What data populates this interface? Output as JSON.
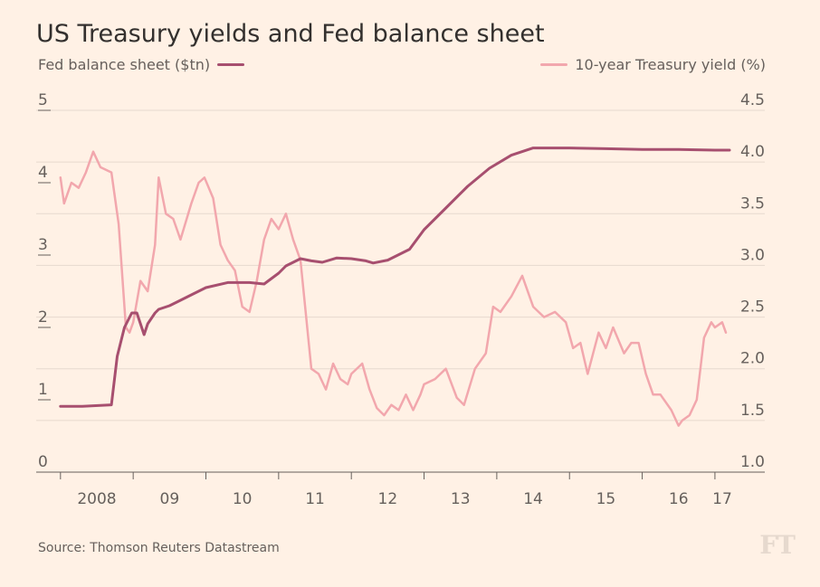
{
  "chart_data": {
    "type": "line",
    "title": "US Treasury yields and Fed balance sheet",
    "legend": {
      "left": "Fed balance sheet ($tn)",
      "right": "10-year Treasury yield (%)"
    },
    "source": "Source: Thomson Reuters Datastream",
    "logo": "FT",
    "colors": {
      "balance": "#a74f6f",
      "yield": "#f2a7ad",
      "grid": "#e6d9ce",
      "axis": "#66605c"
    },
    "x_range": [
      2007.94,
      2017.25
    ],
    "x_ticks": [
      {
        "label": "2008",
        "tick": 2008.0,
        "label_x": 2008.5
      },
      {
        "label": "09",
        "tick": 2009.0,
        "label_x": 2009.5
      },
      {
        "label": "10",
        "tick": 2010.0,
        "label_x": 2010.5
      },
      {
        "label": "11",
        "tick": 2011.0,
        "label_x": 2011.5
      },
      {
        "label": "12",
        "tick": 2012.0,
        "label_x": 2012.5
      },
      {
        "label": "13",
        "tick": 2013.0,
        "label_x": 2013.5
      },
      {
        "label": "14",
        "tick": 2014.0,
        "label_x": 2014.5
      },
      {
        "label": "15",
        "tick": 2015.0,
        "label_x": 2015.5
      },
      {
        "label": "16",
        "tick": 2016.0,
        "label_x": 2016.5
      },
      {
        "label": "17",
        "tick": 2017.0,
        "label_x": 2017.1
      }
    ],
    "left_axis": {
      "min": 0,
      "max": 5,
      "ticks": [
        "0",
        "1",
        "2",
        "3",
        "4",
        "5"
      ]
    },
    "right_axis": {
      "min": 1.0,
      "max": 4.5,
      "ticks": [
        "1.0",
        "1.5",
        "2.0",
        "2.5",
        "3.0",
        "3.5",
        "4.0",
        "4.5"
      ]
    },
    "series": [
      {
        "name": "Fed balance sheet ($tn)",
        "axis": "left",
        "x": [
          2008.0,
          2008.3,
          2008.7,
          2008.78,
          2008.88,
          2008.98,
          2009.05,
          2009.15,
          2009.2,
          2009.3,
          2009.35,
          2009.5,
          2009.6,
          2009.8,
          2010.0,
          2010.3,
          2010.6,
          2010.8,
          2011.0,
          2011.1,
          2011.3,
          2011.45,
          2011.6,
          2011.8,
          2012.0,
          2012.2,
          2012.3,
          2012.5,
          2012.8,
          2013.0,
          2013.3,
          2013.6,
          2013.9,
          2014.2,
          2014.5,
          2014.6,
          2015.0,
          2015.5,
          2016.0,
          2016.5,
          2017.0,
          2017.2
        ],
        "values": [
          0.91,
          0.91,
          0.93,
          1.6,
          2.0,
          2.2,
          2.2,
          1.9,
          2.05,
          2.2,
          2.25,
          2.3,
          2.35,
          2.45,
          2.55,
          2.62,
          2.62,
          2.6,
          2.75,
          2.85,
          2.95,
          2.92,
          2.9,
          2.96,
          2.95,
          2.92,
          2.89,
          2.93,
          3.08,
          3.35,
          3.65,
          3.95,
          4.2,
          4.38,
          4.48,
          4.48,
          4.48,
          4.47,
          4.46,
          4.46,
          4.45,
          4.45
        ],
        "color": "#a74f6f"
      },
      {
        "name": "10-year Treasury yield (%)",
        "axis": "right",
        "x": [
          2008.0,
          2008.05,
          2008.15,
          2008.25,
          2008.35,
          2008.45,
          2008.55,
          2008.7,
          2008.8,
          2008.9,
          2008.95,
          2009.0,
          2009.1,
          2009.2,
          2009.3,
          2009.35,
          2009.45,
          2009.55,
          2009.65,
          2009.8,
          2009.9,
          2009.98,
          2010.1,
          2010.2,
          2010.3,
          2010.4,
          2010.5,
          2010.6,
          2010.7,
          2010.8,
          2010.9,
          2011.0,
          2011.1,
          2011.2,
          2011.3,
          2011.45,
          2011.55,
          2011.65,
          2011.75,
          2011.85,
          2011.95,
          2012.0,
          2012.15,
          2012.25,
          2012.35,
          2012.45,
          2012.55,
          2012.65,
          2012.75,
          2012.85,
          2012.95,
          2013.0,
          2013.15,
          2013.3,
          2013.45,
          2013.55,
          2013.7,
          2013.85,
          2013.95,
          2014.05,
          2014.2,
          2014.35,
          2014.5,
          2014.65,
          2014.8,
          2014.95,
          2015.05,
          2015.15,
          2015.25,
          2015.4,
          2015.5,
          2015.6,
          2015.75,
          2015.85,
          2015.95,
          2016.05,
          2016.15,
          2016.25,
          2016.4,
          2016.5,
          2016.55,
          2016.65,
          2016.75,
          2016.85,
          2016.95,
          2017.0,
          2017.1,
          2017.15
        ],
        "values": [
          3.85,
          3.6,
          3.8,
          3.75,
          3.9,
          4.1,
          3.95,
          3.9,
          3.4,
          2.4,
          2.35,
          2.45,
          2.85,
          2.75,
          3.2,
          3.85,
          3.5,
          3.45,
          3.25,
          3.6,
          3.8,
          3.85,
          3.65,
          3.2,
          3.05,
          2.95,
          2.6,
          2.55,
          2.85,
          3.25,
          3.45,
          3.35,
          3.5,
          3.25,
          3.05,
          2.0,
          1.95,
          1.8,
          2.05,
          1.9,
          1.85,
          1.95,
          2.05,
          1.8,
          1.62,
          1.55,
          1.65,
          1.6,
          1.75,
          1.6,
          1.75,
          1.85,
          1.9,
          2.0,
          1.72,
          1.65,
          2.0,
          2.15,
          2.6,
          2.55,
          2.7,
          2.9,
          2.6,
          2.5,
          2.55,
          2.45,
          2.2,
          2.25,
          1.95,
          2.35,
          2.2,
          2.4,
          2.15,
          2.25,
          2.25,
          1.95,
          1.75,
          1.75,
          1.6,
          1.45,
          1.5,
          1.55,
          1.7,
          2.3,
          2.45,
          2.4,
          2.45,
          2.35
        ],
        "color": "#f2a7ad"
      }
    ]
  }
}
